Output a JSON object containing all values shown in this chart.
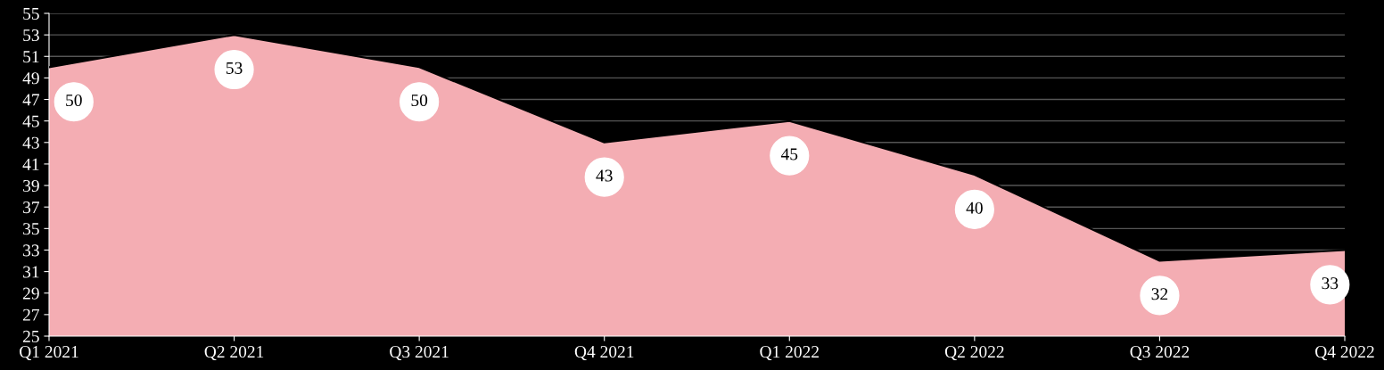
{
  "chart_data": {
    "type": "area",
    "categories": [
      "Q1 2021",
      "Q2 2021",
      "Q3 2021",
      "Q4 2021",
      "Q1 2022",
      "Q2 2022",
      "Q3 2022",
      "Q4 2022"
    ],
    "series": [
      {
        "color": "#f4adb3",
        "values": [
          50,
          53,
          50,
          43,
          45,
          40,
          32,
          33
        ]
      }
    ],
    "ylim": [
      25,
      55
    ],
    "yticks": [
      25,
      27,
      29,
      31,
      33,
      35,
      37,
      39,
      41,
      43,
      45,
      47,
      49,
      51,
      53,
      55
    ],
    "grid": "y",
    "data_labels": true
  }
}
